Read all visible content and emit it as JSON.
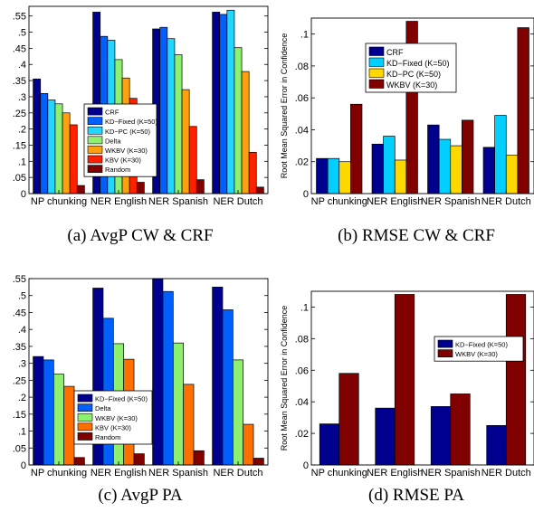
{
  "colors": {
    "CRF": "#00008f",
    "KD-Fixed": "#0060ff",
    "KD-PC": "#20d8ff",
    "Delta": "#8ff070",
    "WKBV": "#ffa010",
    "KBV": "#ff2000",
    "Random": "#800000",
    "rmse_crf": "#00008f",
    "rmse_kdfixed": "#00cfff",
    "rmse_kdpc": "#ffd800",
    "rmse_wkbv": "#800000"
  },
  "chart_data": [
    {
      "type": "bar",
      "caption": "(a) AvgP CW & CRF",
      "categories": [
        "NP chunking",
        "NER English",
        "NER Spanish",
        "NER Dutch"
      ],
      "ylim": [
        0,
        0.58
      ],
      "yticks": [
        0,
        0.05,
        0.1,
        0.15,
        0.2,
        0.25,
        0.3,
        0.35,
        0.4,
        0.45,
        0.5,
        0.55
      ],
      "ylabel": "",
      "series": [
        {
          "name": "CRF",
          "color": "#00008f",
          "values": [
            0.355,
            0.562,
            0.51,
            0.562
          ]
        },
        {
          "name": "KD−Fixed (K=50)",
          "color": "#0060ff",
          "values": [
            0.31,
            0.487,
            0.515,
            0.555
          ]
        },
        {
          "name": "KD−PC (K=50)",
          "color": "#20d8ff",
          "values": [
            0.29,
            0.475,
            0.48,
            0.568
          ]
        },
        {
          "name": "Delta",
          "color": "#8ff070",
          "values": [
            0.278,
            0.415,
            0.43,
            0.452
          ]
        },
        {
          "name": "WKBV (K=30)",
          "color": "#ffa010",
          "values": [
            0.25,
            0.358,
            0.322,
            0.378
          ]
        },
        {
          "name": "KBV (K=30)",
          "color": "#ff2000",
          "values": [
            0.213,
            0.295,
            0.208,
            0.128
          ]
        },
        {
          "name": "Random",
          "color": "#800000",
          "values": [
            0.025,
            0.035,
            0.043,
            0.02
          ]
        }
      ],
      "legend": "center"
    },
    {
      "type": "bar",
      "caption": "(b) RMSE CW & CRF",
      "categories": [
        "NP chunking",
        "NER English",
        "NER Spanish",
        "NER Dutch"
      ],
      "ylim": [
        0,
        0.11
      ],
      "yticks": [
        0,
        0.02,
        0.04,
        0.06,
        0.08,
        0.1
      ],
      "ylabel": "Root Mean Squared Error in Confidence",
      "series": [
        {
          "name": "CRF",
          "color": "#00008f",
          "values": [
            0.022,
            0.031,
            0.043,
            0.029
          ]
        },
        {
          "name": "KD−Fixed (K=50)",
          "color": "#00cfff",
          "values": [
            0.022,
            0.036,
            0.034,
            0.049
          ]
        },
        {
          "name": "KD−PC (K=50)",
          "color": "#ffd800",
          "values": [
            0.02,
            0.021,
            0.03,
            0.024
          ]
        },
        {
          "name": "WKBV (K=30)",
          "color": "#800000",
          "values": [
            0.056,
            0.108,
            0.046,
            0.104
          ]
        }
      ],
      "legend": "top-left"
    },
    {
      "type": "bar",
      "caption": "(c) AvgP PA",
      "categories": [
        "NP chunking",
        "NER English",
        "NER Spanish",
        "NER Dutch"
      ],
      "ylim": [
        0,
        0.55
      ],
      "yticks": [
        0,
        0.05,
        0.1,
        0.15,
        0.2,
        0.25,
        0.3,
        0.35,
        0.4,
        0.45,
        0.5,
        0.55
      ],
      "ylabel": "",
      "series": [
        {
          "name": "KD−Fixed (K=50)",
          "color": "#00008f",
          "values": [
            0.32,
            0.522,
            0.55,
            0.525
          ]
        },
        {
          "name": "Delta",
          "color": "#0060ff",
          "values": [
            0.31,
            0.433,
            0.512,
            0.458
          ]
        },
        {
          "name": "WKBV (K=30)",
          "color": "#8ff070",
          "values": [
            0.268,
            0.358,
            0.36,
            0.31
          ]
        },
        {
          "name": "KBV (K=30)",
          "color": "#ff7000",
          "values": [
            0.232,
            0.312,
            0.238,
            0.12
          ]
        },
        {
          "name": "Random",
          "color": "#800000",
          "values": [
            0.022,
            0.033,
            0.042,
            0.02
          ]
        }
      ],
      "legend": "bottom-center"
    },
    {
      "type": "bar",
      "caption": "(d) RMSE PA",
      "categories": [
        "NP chunking",
        "NER English",
        "NER Spanish",
        "NER Dutch"
      ],
      "ylim": [
        0,
        0.11
      ],
      "yticks": [
        0,
        0.02,
        0.04,
        0.06,
        0.08,
        0.1
      ],
      "ylabel": "Root Mean Squared Error in Confidence",
      "series": [
        {
          "name": "KD−Fixed (K=50)",
          "color": "#00008f",
          "values": [
            0.026,
            0.036,
            0.037,
            0.025
          ]
        },
        {
          "name": "WKBV (K=30)",
          "color": "#800000",
          "values": [
            0.058,
            0.108,
            0.045,
            0.108
          ]
        }
      ],
      "legend": "center-right"
    }
  ]
}
